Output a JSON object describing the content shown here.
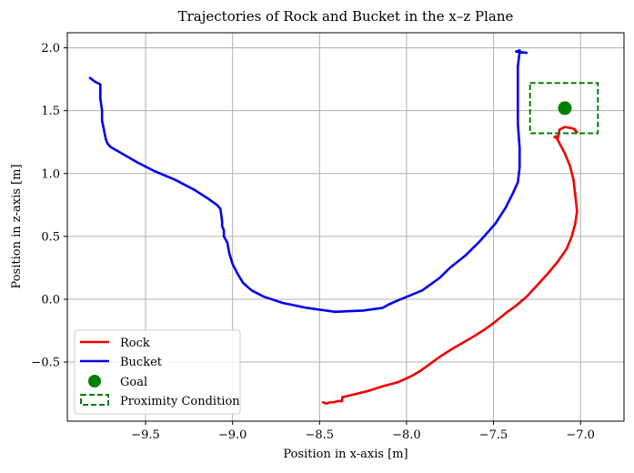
{
  "chart_data": {
    "type": "line",
    "title": "Trajectories of Rock and Bucket in the x–z Plane",
    "xlabel": "Position in x-axis [m]",
    "ylabel": "Position in z-axis [m]",
    "xlim": [
      -9.95,
      -6.75
    ],
    "ylim": [
      -0.97,
      2.12
    ],
    "xticks": [
      -9.5,
      -9.0,
      -8.5,
      -8.0,
      -7.5,
      -7.0
    ],
    "xtick_labels": [
      "−9.5",
      "−9.0",
      "−8.5",
      "−8.0",
      "−7.5",
      "−7.0"
    ],
    "yticks": [
      -0.5,
      0.0,
      0.5,
      1.0,
      1.5,
      2.0
    ],
    "ytick_labels": [
      "−0.5",
      "0.0",
      "0.5",
      "1.0",
      "1.5",
      "2.0"
    ],
    "grid": true,
    "legend_position": "lower-left",
    "series": [
      {
        "name": "Rock",
        "color": "#ee0000",
        "x": [
          -8.48,
          -8.46,
          -8.44,
          -8.42,
          -8.39,
          -8.37,
          -8.37,
          -8.31,
          -8.22,
          -8.13,
          -8.05,
          -8.0,
          -7.97,
          -7.92,
          -7.86,
          -7.8,
          -7.72,
          -7.63,
          -7.55,
          -7.5,
          -7.43,
          -7.37,
          -7.31,
          -7.25,
          -7.19,
          -7.13,
          -7.08,
          -7.05,
          -7.03,
          -7.02,
          -7.03,
          -7.04,
          -7.06,
          -7.09,
          -7.12,
          -7.14,
          -7.13,
          -7.15,
          -7.13,
          -7.12,
          -7.09,
          -7.05,
          -7.03,
          -7.03,
          -7.02
        ],
        "y": [
          -0.82,
          -0.83,
          -0.82,
          -0.82,
          -0.81,
          -0.81,
          -0.78,
          -0.76,
          -0.73,
          -0.69,
          -0.66,
          -0.63,
          -0.61,
          -0.57,
          -0.51,
          -0.45,
          -0.38,
          -0.31,
          -0.24,
          -0.19,
          -0.11,
          -0.05,
          0.02,
          0.11,
          0.2,
          0.3,
          0.4,
          0.5,
          0.6,
          0.7,
          0.83,
          0.95,
          1.06,
          1.16,
          1.24,
          1.29,
          1.3,
          1.29,
          1.28,
          1.35,
          1.37,
          1.36,
          1.35,
          1.34,
          1.33
        ]
      },
      {
        "name": "Bucket",
        "color": "#0000ee",
        "x": [
          -9.82,
          -9.79,
          -9.76,
          -9.76,
          -9.75,
          -9.75,
          -9.74,
          -9.73,
          -9.72,
          -9.7,
          -9.65,
          -9.55,
          -9.45,
          -9.33,
          -9.22,
          -9.14,
          -9.09,
          -9.07,
          -9.06,
          -9.06,
          -9.05,
          -9.05,
          -9.03,
          -9.02,
          -9.0,
          -8.97,
          -8.94,
          -8.89,
          -8.82,
          -8.71,
          -8.57,
          -8.41,
          -8.25,
          -8.14,
          -8.1,
          -8.05,
          -7.98,
          -7.91,
          -7.87,
          -7.81,
          -7.75,
          -7.66,
          -7.58,
          -7.49,
          -7.43,
          -7.39,
          -7.36,
          -7.35,
          -7.35,
          -7.36,
          -7.36,
          -7.36,
          -7.36,
          -7.35,
          -7.35,
          -7.37,
          -7.31
        ],
        "y": [
          1.76,
          1.73,
          1.71,
          1.6,
          1.5,
          1.42,
          1.35,
          1.28,
          1.24,
          1.21,
          1.17,
          1.09,
          1.02,
          0.95,
          0.87,
          0.8,
          0.75,
          0.72,
          0.62,
          0.58,
          0.55,
          0.5,
          0.45,
          0.37,
          0.28,
          0.2,
          0.13,
          0.07,
          0.02,
          -0.03,
          -0.07,
          -0.1,
          -0.09,
          -0.07,
          -0.04,
          -0.01,
          0.03,
          0.07,
          0.11,
          0.17,
          0.25,
          0.35,
          0.46,
          0.6,
          0.73,
          0.84,
          0.93,
          1.05,
          1.2,
          1.4,
          1.6,
          1.75,
          1.85,
          1.97,
          1.98,
          1.97,
          1.96
        ]
      },
      {
        "name": "Goal",
        "color": "#008000",
        "type": "scatter",
        "x": [
          -7.09
        ],
        "y": [
          1.52
        ]
      },
      {
        "name": "Proximity Condition",
        "color": "#008000",
        "type": "rect-dashed",
        "x": [
          -7.29,
          -6.9
        ],
        "y": [
          1.32,
          1.72
        ]
      }
    ]
  }
}
